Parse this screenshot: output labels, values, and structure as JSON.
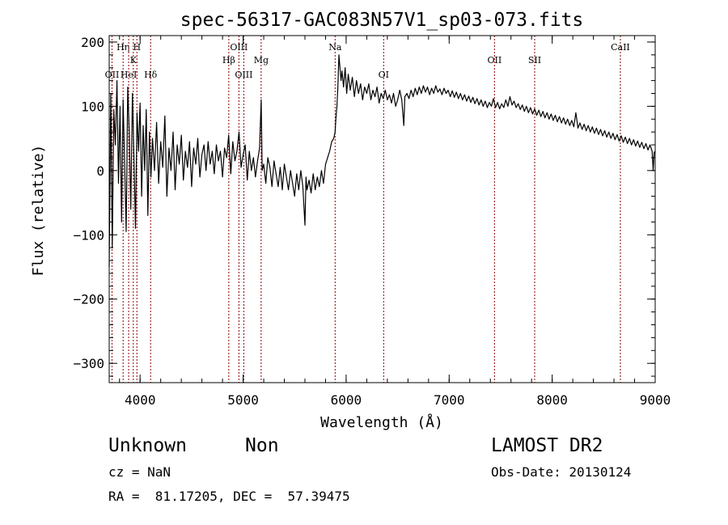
{
  "chart_data": {
    "type": "line",
    "title": "spec-56317-GAC083N57V1_sp03-073.fits",
    "xlabel": "Wavelength (Å)",
    "ylabel": "Flux (relative)",
    "xlim": [
      3700,
      9000
    ],
    "ylim": [
      -330,
      210
    ],
    "x_ticks": [
      4000,
      5000,
      6000,
      7000,
      8000,
      9000
    ],
    "x_tick_labels": [
      "4000",
      "5000",
      "6000",
      "7000",
      "8000",
      "9000"
    ],
    "y_ticks": [
      200,
      100,
      0,
      -100,
      -200,
      -300
    ],
    "y_tick_labels": [
      "200",
      "100",
      "0",
      "−100",
      "−200",
      "−300"
    ],
    "grid": false,
    "line_color": "#000000",
    "marker_color": "#8b0000",
    "spectral_lines": [
      {
        "label": "OII",
        "x": 3727,
        "row": 3
      },
      {
        "label": "Hη",
        "x": 3835,
        "row": 1
      },
      {
        "label": "HeI",
        "x": 3889,
        "row": 3
      },
      {
        "label": "K",
        "x": 3934,
        "row": 2
      },
      {
        "label": "H",
        "x": 3969,
        "row": 1
      },
      {
        "label": "Hδ",
        "x": 4102,
        "row": 3
      },
      {
        "label": "Hβ",
        "x": 4861,
        "row": 2
      },
      {
        "label": "OIII",
        "x": 4959,
        "row": 1
      },
      {
        "label": "OIII",
        "x": 5007,
        "row": 3
      },
      {
        "label": "Mg",
        "x": 5175,
        "row": 2
      },
      {
        "label": "Na",
        "x": 5893,
        "row": 1
      },
      {
        "label": "OI",
        "x": 6364,
        "row": 3
      },
      {
        "label": "OII",
        "x": 7440,
        "row": 2
      },
      {
        "label": "SII",
        "x": 7830,
        "row": 2
      },
      {
        "label": "CaII",
        "x": 8662,
        "row": 1
      }
    ],
    "series": [
      {
        "points": [
          [
            3700,
            -150
          ],
          [
            3715,
            120
          ],
          [
            3730,
            -120
          ],
          [
            3745,
            95
          ],
          [
            3760,
            40
          ],
          [
            3775,
            140
          ],
          [
            3790,
            -20
          ],
          [
            3805,
            100
          ],
          [
            3820,
            -80
          ],
          [
            3835,
            110
          ],
          [
            3850,
            10
          ],
          [
            3865,
            -95
          ],
          [
            3880,
            130
          ],
          [
            3895,
            60
          ],
          [
            3910,
            -60
          ],
          [
            3925,
            120
          ],
          [
            3940,
            20
          ],
          [
            3955,
            -90
          ],
          [
            3970,
            90
          ],
          [
            3985,
            30
          ],
          [
            4000,
            105
          ],
          [
            4015,
            -40
          ],
          [
            4030,
            70
          ],
          [
            4045,
            0
          ],
          [
            4060,
            95
          ],
          [
            4075,
            -70
          ],
          [
            4090,
            60
          ],
          [
            4105,
            -10
          ],
          [
            4120,
            50
          ],
          [
            4140,
            0
          ],
          [
            4160,
            75
          ],
          [
            4180,
            -20
          ],
          [
            4200,
            45
          ],
          [
            4220,
            5
          ],
          [
            4240,
            85
          ],
          [
            4260,
            -40
          ],
          [
            4280,
            35
          ],
          [
            4300,
            0
          ],
          [
            4320,
            60
          ],
          [
            4340,
            -30
          ],
          [
            4360,
            40
          ],
          [
            4380,
            10
          ],
          [
            4400,
            55
          ],
          [
            4420,
            -15
          ],
          [
            4440,
            30
          ],
          [
            4460,
            5
          ],
          [
            4480,
            45
          ],
          [
            4500,
            -25
          ],
          [
            4520,
            35
          ],
          [
            4540,
            10
          ],
          [
            4560,
            50
          ],
          [
            4580,
            -10
          ],
          [
            4600,
            25
          ],
          [
            4620,
            40
          ],
          [
            4640,
            0
          ],
          [
            4660,
            45
          ],
          [
            4680,
            10
          ],
          [
            4700,
            30
          ],
          [
            4720,
            -5
          ],
          [
            4740,
            40
          ],
          [
            4760,
            15
          ],
          [
            4780,
            30
          ],
          [
            4800,
            -10
          ],
          [
            4820,
            35
          ],
          [
            4840,
            20
          ],
          [
            4860,
            55
          ],
          [
            4880,
            -5
          ],
          [
            4900,
            45
          ],
          [
            4920,
            15
          ],
          [
            4940,
            30
          ],
          [
            4960,
            60
          ],
          [
            4980,
            5
          ],
          [
            5000,
            25
          ],
          [
            5020,
            40
          ],
          [
            5040,
            -15
          ],
          [
            5060,
            30
          ],
          [
            5080,
            0
          ],
          [
            5100,
            20
          ],
          [
            5120,
            -10
          ],
          [
            5140,
            15
          ],
          [
            5160,
            35
          ],
          [
            5175,
            110
          ],
          [
            5185,
            0
          ],
          [
            5200,
            10
          ],
          [
            5220,
            -20
          ],
          [
            5240,
            20
          ],
          [
            5260,
            5
          ],
          [
            5280,
            -25
          ],
          [
            5300,
            15
          ],
          [
            5320,
            -5
          ],
          [
            5340,
            -25
          ],
          [
            5360,
            5
          ],
          [
            5380,
            -30
          ],
          [
            5400,
            10
          ],
          [
            5420,
            -10
          ],
          [
            5440,
            -30
          ],
          [
            5460,
            0
          ],
          [
            5480,
            -20
          ],
          [
            5500,
            -40
          ],
          [
            5520,
            -5
          ],
          [
            5540,
            -30
          ],
          [
            5560,
            0
          ],
          [
            5580,
            -25
          ],
          [
            5600,
            -85
          ],
          [
            5610,
            -10
          ],
          [
            5620,
            -30
          ],
          [
            5640,
            -15
          ],
          [
            5660,
            -35
          ],
          [
            5680,
            -5
          ],
          [
            5700,
            -30
          ],
          [
            5720,
            -10
          ],
          [
            5740,
            -25
          ],
          [
            5760,
            0
          ],
          [
            5780,
            -20
          ],
          [
            5800,
            10
          ],
          [
            5820,
            20
          ],
          [
            5840,
            30
          ],
          [
            5860,
            45
          ],
          [
            5880,
            50
          ],
          [
            5893,
            60
          ],
          [
            5900,
            80
          ],
          [
            5910,
            100
          ],
          [
            5920,
            130
          ],
          [
            5930,
            180
          ],
          [
            5940,
            160
          ],
          [
            5950,
            140
          ],
          [
            5960,
            155
          ],
          [
            5975,
            130
          ],
          [
            5990,
            160
          ],
          [
            6005,
            120
          ],
          [
            6020,
            150
          ],
          [
            6040,
            125
          ],
          [
            6060,
            145
          ],
          [
            6080,
            115
          ],
          [
            6100,
            140
          ],
          [
            6120,
            120
          ],
          [
            6140,
            135
          ],
          [
            6160,
            110
          ],
          [
            6180,
            130
          ],
          [
            6200,
            120
          ],
          [
            6220,
            135
          ],
          [
            6240,
            110
          ],
          [
            6260,
            125
          ],
          [
            6280,
            115
          ],
          [
            6300,
            130
          ],
          [
            6320,
            105
          ],
          [
            6340,
            120
          ],
          [
            6360,
            112
          ],
          [
            6380,
            125
          ],
          [
            6400,
            110
          ],
          [
            6420,
            118
          ],
          [
            6440,
            105
          ],
          [
            6460,
            120
          ],
          [
            6480,
            100
          ],
          [
            6500,
            110
          ],
          [
            6520,
            125
          ],
          [
            6540,
            110
          ],
          [
            6560,
            70
          ],
          [
            6570,
            115
          ],
          [
            6590,
            120
          ],
          [
            6610,
            112
          ],
          [
            6630,
            125
          ],
          [
            6650,
            115
          ],
          [
            6670,
            128
          ],
          [
            6690,
            118
          ],
          [
            6710,
            130
          ],
          [
            6730,
            120
          ],
          [
            6750,
            132
          ],
          [
            6770,
            122
          ],
          [
            6790,
            130
          ],
          [
            6810,
            118
          ],
          [
            6830,
            128
          ],
          [
            6850,
            120
          ],
          [
            6870,
            132
          ],
          [
            6890,
            122
          ],
          [
            6910,
            127
          ],
          [
            6930,
            118
          ],
          [
            6950,
            128
          ],
          [
            6970,
            120
          ],
          [
            6990,
            125
          ],
          [
            7010,
            115
          ],
          [
            7030,
            124
          ],
          [
            7050,
            114
          ],
          [
            7070,
            122
          ],
          [
            7090,
            112
          ],
          [
            7110,
            120
          ],
          [
            7130,
            110
          ],
          [
            7150,
            118
          ],
          [
            7170,
            108
          ],
          [
            7190,
            116
          ],
          [
            7210,
            106
          ],
          [
            7230,
            114
          ],
          [
            7250,
            104
          ],
          [
            7270,
            112
          ],
          [
            7290,
            102
          ],
          [
            7310,
            110
          ],
          [
            7330,
            100
          ],
          [
            7350,
            108
          ],
          [
            7370,
            98
          ],
          [
            7390,
            106
          ],
          [
            7410,
            100
          ],
          [
            7430,
            112
          ],
          [
            7450,
            98
          ],
          [
            7470,
            106
          ],
          [
            7490,
            96
          ],
          [
            7510,
            104
          ],
          [
            7530,
            98
          ],
          [
            7550,
            110
          ],
          [
            7570,
            100
          ],
          [
            7590,
            115
          ],
          [
            7610,
            102
          ],
          [
            7630,
            108
          ],
          [
            7650,
            98
          ],
          [
            7670,
            104
          ],
          [
            7690,
            95
          ],
          [
            7710,
            102
          ],
          [
            7730,
            92
          ],
          [
            7750,
            100
          ],
          [
            7770,
            90
          ],
          [
            7790,
            98
          ],
          [
            7810,
            88
          ],
          [
            7830,
            96
          ],
          [
            7850,
            86
          ],
          [
            7870,
            94
          ],
          [
            7890,
            84
          ],
          [
            7910,
            92
          ],
          [
            7930,
            82
          ],
          [
            7950,
            90
          ],
          [
            7970,
            80
          ],
          [
            7990,
            88
          ],
          [
            8010,
            78
          ],
          [
            8030,
            86
          ],
          [
            8050,
            76
          ],
          [
            8070,
            84
          ],
          [
            8090,
            74
          ],
          [
            8110,
            82
          ],
          [
            8130,
            72
          ],
          [
            8150,
            80
          ],
          [
            8170,
            70
          ],
          [
            8190,
            78
          ],
          [
            8210,
            68
          ],
          [
            8230,
            90
          ],
          [
            8250,
            66
          ],
          [
            8270,
            74
          ],
          [
            8290,
            64
          ],
          [
            8310,
            72
          ],
          [
            8330,
            62
          ],
          [
            8350,
            70
          ],
          [
            8370,
            60
          ],
          [
            8390,
            68
          ],
          [
            8410,
            58
          ],
          [
            8430,
            66
          ],
          [
            8450,
            56
          ],
          [
            8470,
            64
          ],
          [
            8490,
            54
          ],
          [
            8510,
            62
          ],
          [
            8530,
            52
          ],
          [
            8550,
            60
          ],
          [
            8570,
            50
          ],
          [
            8590,
            58
          ],
          [
            8610,
            48
          ],
          [
            8630,
            56
          ],
          [
            8650,
            46
          ],
          [
            8670,
            54
          ],
          [
            8690,
            44
          ],
          [
            8710,
            52
          ],
          [
            8730,
            42
          ],
          [
            8750,
            50
          ],
          [
            8770,
            40
          ],
          [
            8790,
            48
          ],
          [
            8810,
            38
          ],
          [
            8830,
            46
          ],
          [
            8850,
            36
          ],
          [
            8870,
            44
          ],
          [
            8890,
            34
          ],
          [
            8910,
            42
          ],
          [
            8930,
            32
          ],
          [
            8950,
            40
          ],
          [
            8970,
            30
          ],
          [
            8980,
            0
          ],
          [
            8990,
            28
          ],
          [
            9000,
            30
          ]
        ]
      }
    ]
  },
  "info": {
    "object_class": "Unknown",
    "subclass": "Non",
    "survey": "LAMOST DR2",
    "cz": "cz = NaN",
    "obs_date": "Obs-Date: 20130124",
    "coords": "RA =  81.17205, DEC =  57.39475"
  }
}
